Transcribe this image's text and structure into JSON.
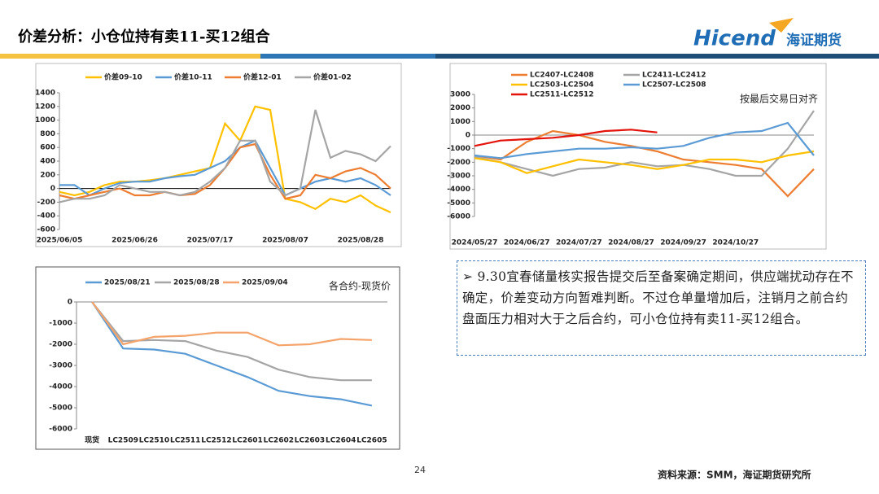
{
  "header": {
    "title": "价差分析：小仓位持有卖11-买12组合"
  },
  "logo": {
    "brand": "Hicend",
    "name": "海证期货"
  },
  "chart_data": [
    {
      "type": "line",
      "categories": [
        "2025/06/05",
        null,
        null,
        null,
        null,
        "2025/06/26",
        null,
        null,
        null,
        null,
        "2025/07/17",
        null,
        null,
        null,
        null,
        "2025/08/07",
        null,
        null,
        null,
        null,
        "2025/08/28",
        null,
        null
      ],
      "series": [
        {
          "name": "价差09-10",
          "color": "#ffc000",
          "values": [
            -50,
            -100,
            -50,
            50,
            100,
            100,
            120,
            150,
            200,
            250,
            300,
            950,
            700,
            1200,
            1150,
            -150,
            -200,
            -300,
            -150,
            -200,
            -100,
            -250,
            -350
          ]
        },
        {
          "name": "价差10-11",
          "color": "#5b9bd5",
          "values": [
            50,
            50,
            -100,
            0,
            80,
            100,
            100,
            150,
            180,
            200,
            300,
            400,
            600,
            700,
            300,
            -100,
            0,
            100,
            150,
            100,
            150,
            50,
            -100
          ]
        },
        {
          "name": "价差12-01",
          "color": "#ed7d31",
          "values": [
            -100,
            -150,
            -100,
            -50,
            0,
            -100,
            -100,
            -50,
            -100,
            -80,
            50,
            300,
            600,
            650,
            200,
            -150,
            -100,
            200,
            150,
            250,
            300,
            200,
            0
          ]
        },
        {
          "name": "价差01-02",
          "color": "#a5a5a5",
          "values": [
            -200,
            -150,
            -150,
            -100,
            50,
            0,
            -50,
            -50,
            -100,
            -50,
            100,
            300,
            700,
            700,
            100,
            -100,
            0,
            1150,
            450,
            550,
            500,
            400,
            620
          ]
        }
      ],
      "ylim": [
        -600,
        1400
      ],
      "yticks": [
        -600,
        -400,
        -200,
        0,
        200,
        400,
        600,
        800,
        1000,
        1200,
        1400
      ]
    },
    {
      "type": "line",
      "annotation": "按最后交易日对齐",
      "categories": [
        "2024/05/27",
        null,
        "2024/06/27",
        null,
        "2024/07/27",
        null,
        "2024/08/27",
        null,
        "2024/09/27",
        null,
        "2024/10/27",
        null,
        null,
        null
      ],
      "series": [
        {
          "name": "LC2407-LC2408",
          "color": "#ed7d31",
          "values": [
            -1500,
            -1800,
            -500,
            300,
            0,
            -500,
            -800,
            -1200,
            -1800,
            -2000,
            -2200,
            -2500,
            -4500,
            -2500
          ]
        },
        {
          "name": "LC2411-LC2412",
          "color": "#a5a5a5",
          "values": [
            -1600,
            -2000,
            -2500,
            -3000,
            -2500,
            -2400,
            -2000,
            -2300,
            -2200,
            -2500,
            -3000,
            -3000,
            -1000,
            1800
          ]
        },
        {
          "name": "LC2503-LC2504",
          "color": "#ffc000",
          "values": [
            -1700,
            -2000,
            -2800,
            -2300,
            -1800,
            -2000,
            -2200,
            -2500,
            -2200,
            -1800,
            -1800,
            -2000,
            -1500,
            -1200
          ]
        },
        {
          "name": "LC2507-LC2508",
          "color": "#5b9bd5",
          "values": [
            -1500,
            -1700,
            -1400,
            -1200,
            -1000,
            -1000,
            -900,
            -1000,
            -800,
            -200,
            200,
            300,
            900,
            -1500
          ]
        },
        {
          "name": "LC2511-LC2512",
          "color": "#e3120b",
          "values": [
            -800,
            -400,
            -300,
            -200,
            0,
            300,
            400,
            200,
            null,
            null,
            null,
            null,
            null,
            null
          ]
        }
      ],
      "ylim": [
        -6000,
        3000
      ],
      "yticks": [
        -6000,
        -5000,
        -4000,
        -3000,
        -2000,
        -1000,
        0,
        1000,
        2000,
        3000
      ]
    },
    {
      "type": "line",
      "annotation": "各合约-现货价",
      "categories": [
        "现货",
        "LC2509",
        "LC2510",
        "LC2511",
        "LC2512",
        "LC2601",
        "LC2602",
        "LC2603",
        "LC2604",
        "LC2605"
      ],
      "series": [
        {
          "name": "2025/08/21",
          "color": "#5b9bd5",
          "values": [
            0,
            -2200,
            -2250,
            -2450,
            -3000,
            -3550,
            -4200,
            -4450,
            -4600,
            -4900
          ]
        },
        {
          "name": "2025/08/28",
          "color": "#a5a5a5",
          "values": [
            0,
            -1850,
            -1800,
            -1850,
            -2300,
            -2600,
            -3200,
            -3550,
            -3700,
            -3700
          ]
        },
        {
          "name": "2025/09/04",
          "color": "#f4a46a",
          "values": [
            0,
            -2000,
            -1650,
            -1600,
            -1450,
            -1450,
            -2050,
            -2000,
            -1750,
            -1800
          ]
        }
      ],
      "ylim": [
        -6000,
        0
      ],
      "yticks": [
        -6000,
        -5000,
        -4000,
        -3000,
        -2000,
        -1000,
        0
      ]
    }
  ],
  "note": {
    "text": "➢ 9.30宜春储量核实报告提交后至备案确定期间，供应端扰动存在不确定，价差变动方向暂难判断。不过仓单量增加后，注销月之前合约盘面压力相对大于之后合约，可小仓位持有卖11-买12组合。"
  },
  "footer": {
    "page": "24",
    "source": "资料来源：SMM，海证期货研究所"
  }
}
